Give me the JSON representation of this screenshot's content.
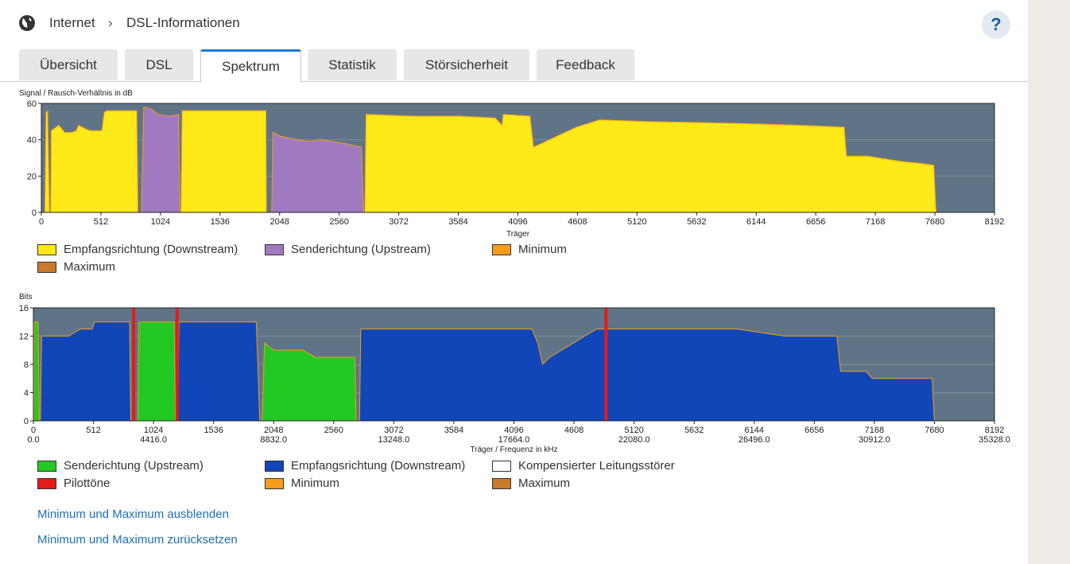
{
  "header": {
    "globe_icon": "globe-icon",
    "breadcrumb": [
      "Internet",
      "DSL-Informationen"
    ],
    "separator": "›",
    "help_label": "?"
  },
  "tabs": [
    {
      "label": "Übersicht",
      "active": false
    },
    {
      "label": "DSL",
      "active": false
    },
    {
      "label": "Spektrum",
      "active": true
    },
    {
      "label": "Statistik",
      "active": false
    },
    {
      "label": "Störsicherheit",
      "active": false
    },
    {
      "label": "Feedback",
      "active": false
    }
  ],
  "colors": {
    "plot_bg": "#5f7587",
    "downstream_snr": "#ffe918",
    "upstream_snr": "#a07ac0",
    "upstream_bits": "#22c922",
    "downstream_bits": "#1146b8",
    "pilot": "#e51a1a",
    "minimum": "#f59d1b",
    "maximum": "#c77a2c"
  },
  "chart_data": [
    {
      "type": "area",
      "ylabel": "Signal / Rausch-Verhältnis in dB",
      "xlabel": "Träger",
      "xlim": [
        0,
        8192
      ],
      "ylim": [
        0,
        60
      ],
      "xticks": [
        "0",
        "512",
        "1024",
        "1536",
        "2048",
        "2560",
        "3072",
        "3584",
        "4096",
        "4608",
        "5120",
        "5632",
        "6144",
        "6656",
        "7168",
        "7680",
        "8192"
      ],
      "yticks": [
        "0",
        "20",
        "40",
        "60"
      ],
      "grid": true,
      "series": [
        {
          "name": "Empfangsrichtung (Downstream)",
          "color": "#ffe918",
          "segments": [
            [
              [
                30,
                0
              ],
              [
                40,
                55
              ],
              [
                55,
                56
              ],
              [
                70,
                0
              ]
            ],
            [
              [
                80,
                0
              ],
              [
                85,
                45
              ],
              [
                150,
                48
              ],
              [
                200,
                44
              ],
              [
                260,
                44
              ],
              [
                300,
                45
              ],
              [
                320,
                48
              ],
              [
                380,
                46
              ],
              [
                420,
                45
              ],
              [
                450,
                45
              ],
              [
                520,
                45
              ],
              [
                540,
                55
              ],
              [
                560,
                56
              ],
              [
                650,
                56
              ],
              [
                820,
                56
              ],
              [
                830,
                0
              ]
            ],
            [
              [
                1200,
                0
              ],
              [
                1210,
                56
              ],
              [
                1500,
                56
              ],
              [
                1800,
                56
              ],
              [
                1930,
                56
              ],
              [
                1935,
                0
              ]
            ],
            [
              [
                2780,
                0
              ],
              [
                2790,
                54
              ],
              [
                3200,
                53
              ],
              [
                3600,
                53
              ],
              [
                3900,
                52
              ],
              [
                3960,
                48
              ],
              [
                3970,
                54
              ],
              [
                4200,
                53
              ],
              [
                4230,
                36
              ],
              [
                4300,
                38
              ],
              [
                4600,
                47
              ],
              [
                4800,
                51
              ],
              [
                5200,
                50
              ],
              [
                6000,
                49
              ],
              [
                6500,
                48
              ],
              [
                6900,
                47
              ],
              [
                6920,
                31
              ],
              [
                7100,
                31
              ],
              [
                7400,
                28
              ],
              [
                7550,
                27
              ],
              [
                7670,
                26
              ],
              [
                7690,
                0
              ]
            ]
          ]
        },
        {
          "name": "Senderichtung (Upstream)",
          "color": "#a07ac0",
          "segments": [
            [
              [
                860,
                0
              ],
              [
                880,
                58
              ],
              [
                940,
                57
              ],
              [
                1000,
                54
              ],
              [
                1100,
                53
              ],
              [
                1180,
                54
              ],
              [
                1190,
                0
              ]
            ],
            [
              [
                1980,
                0
              ],
              [
                1990,
                44
              ],
              [
                2050,
                42
              ],
              [
                2200,
                40
              ],
              [
                2300,
                39
              ],
              [
                2400,
                40
              ],
              [
                2500,
                39
              ],
              [
                2600,
                38
              ],
              [
                2750,
                36
              ],
              [
                2770,
                0
              ]
            ]
          ]
        }
      ],
      "legend": [
        {
          "label": "Empfangsrichtung (Downstream)",
          "color": "#ffe918"
        },
        {
          "label": "Senderichtung (Upstream)",
          "color": "#a07ac0"
        },
        {
          "label": "Minimum",
          "color": "#f59d1b"
        },
        {
          "label": "Maximum",
          "color": "#c77a2c"
        }
      ]
    },
    {
      "type": "area",
      "ylabel": "Bits",
      "xlabel": "Träger / Frequenz in kHz",
      "xlim": [
        0,
        8192
      ],
      "ylim": [
        0,
        16
      ],
      "xticks": [
        "0",
        "512",
        "1024",
        "1536",
        "2048",
        "2560",
        "3072",
        "3584",
        "4096",
        "4608",
        "5120",
        "5632",
        "6144",
        "6656",
        "7168",
        "7680",
        "8192"
      ],
      "xticks2": [
        "0.0",
        "4416.0",
        "8832.0",
        "13248.0",
        "17664.0",
        "22080.0",
        "26496.0",
        "30912.0",
        "35328.0"
      ],
      "yticks": [
        "0",
        "4",
        "8",
        "12",
        "16"
      ],
      "grid": true,
      "series": [
        {
          "name": "Senderichtung (Upstream)",
          "color": "#22c922",
          "segments": [
            [
              [
                5,
                0
              ],
              [
                8,
                14
              ],
              [
                40,
                14
              ],
              [
                50,
                0
              ]
            ],
            [
              [
                890,
                0
              ],
              [
                900,
                14
              ],
              [
                1200,
                14
              ],
              [
                1210,
                0
              ]
            ],
            [
              [
                1950,
                0
              ],
              [
                1970,
                11
              ],
              [
                2050,
                10
              ],
              [
                2300,
                10
              ],
              [
                2400,
                9
              ],
              [
                2600,
                9
              ],
              [
                2740,
                9
              ],
              [
                2750,
                0
              ]
            ]
          ]
        },
        {
          "name": "Empfangsrichtung (Downstream)",
          "color": "#1146b8",
          "segments": [
            [
              [
                60,
                0
              ],
              [
                70,
                12
              ],
              [
                200,
                12
              ],
              [
                300,
                12
              ],
              [
                400,
                13
              ],
              [
                500,
                13
              ],
              [
                520,
                14
              ],
              [
                820,
                14
              ],
              [
                830,
                0
              ]
            ],
            [
              [
                1230,
                0
              ],
              [
                1240,
                14
              ],
              [
                1500,
                14
              ],
              [
                1900,
                14
              ],
              [
                1930,
                0
              ]
            ],
            [
              [
                2780,
                0
              ],
              [
                2790,
                13
              ],
              [
                3000,
                13
              ],
              [
                3400,
                13
              ],
              [
                3600,
                13
              ],
              [
                3900,
                13
              ],
              [
                4000,
                13
              ],
              [
                4100,
                13
              ],
              [
                4250,
                13
              ],
              [
                4300,
                11
              ],
              [
                4340,
                8
              ],
              [
                4400,
                9
              ],
              [
                4600,
                11
              ],
              [
                4700,
                12
              ],
              [
                4800,
                13
              ],
              [
                5000,
                13
              ],
              [
                5500,
                13
              ],
              [
                6000,
                13
              ],
              [
                6400,
                12
              ],
              [
                6500,
                12
              ],
              [
                6850,
                12
              ],
              [
                6880,
                7
              ],
              [
                7100,
                7
              ],
              [
                7150,
                6
              ],
              [
                7500,
                6
              ],
              [
                7660,
                6
              ],
              [
                7680,
                0
              ]
            ]
          ]
        },
        {
          "name": "Pilottöne",
          "color": "#e51a1a",
          "x": [
            855,
            1225,
            4880
          ]
        }
      ],
      "legend": [
        {
          "label": "Senderichtung (Upstream)",
          "color": "#22c922"
        },
        {
          "label": "Empfangsrichtung (Downstream)",
          "color": "#1146b8"
        },
        {
          "label": "Kompensierter Leitungsstörer",
          "color": "#ffffff"
        },
        {
          "label": "Pilottöne",
          "color": "#e51a1a"
        },
        {
          "label": "Minimum",
          "color": "#f59d1b"
        },
        {
          "label": "Maximum",
          "color": "#c77a2c"
        }
      ]
    }
  ],
  "links": {
    "hide_minmax": "Minimum und Maximum ausblenden",
    "reset_minmax": "Minimum und Maximum zurücksetzen"
  }
}
